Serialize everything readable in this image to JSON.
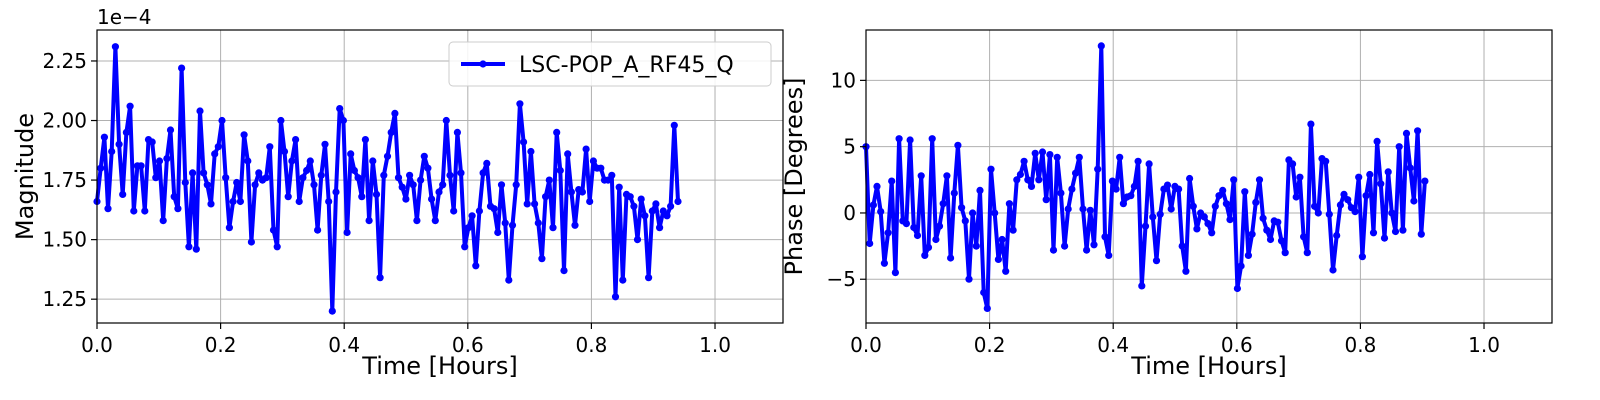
{
  "colors": {
    "series": "#0000ff",
    "grid": "#b0b0b0",
    "axes": "#000000"
  },
  "chart_data": [
    {
      "type": "line",
      "xlabel": "Time [Hours]",
      "ylabel": "Magnitude",
      "offset_label": "1e−4",
      "xlim": [
        0,
        1.11
      ],
      "ylim": [
        1.15,
        2.38
      ],
      "xticks": [
        0.0,
        0.2,
        0.4,
        0.6,
        0.8,
        1.0
      ],
      "xtick_labels": [
        "0.0",
        "0.2",
        "0.4",
        "0.6",
        "0.8",
        "1.0"
      ],
      "yticks": [
        1.25,
        1.5,
        1.75,
        2.0,
        2.25
      ],
      "ytick_labels": [
        "1.25",
        "1.50",
        "1.75",
        "2.00",
        "2.25"
      ],
      "grid": true,
      "legend": "top-right",
      "series": [
        {
          "name": "LSC-POP_A_RF45_Q",
          "x_start": 0.0,
          "x_step": 0.00595,
          "values": [
            1.66,
            1.8,
            1.93,
            1.63,
            1.87,
            2.31,
            1.9,
            1.69,
            1.95,
            2.06,
            1.62,
            1.81,
            1.81,
            1.62,
            1.92,
            1.91,
            1.76,
            1.83,
            1.58,
            1.84,
            1.96,
            1.68,
            1.63,
            2.22,
            1.74,
            1.47,
            1.78,
            1.46,
            2.04,
            1.78,
            1.73,
            1.65,
            1.86,
            1.89,
            2.0,
            1.76,
            1.55,
            1.66,
            1.74,
            1.66,
            1.94,
            1.83,
            1.49,
            1.73,
            1.78,
            1.75,
            1.76,
            1.89,
            1.54,
            1.47,
            2.0,
            1.87,
            1.68,
            1.83,
            1.92,
            1.66,
            1.76,
            1.79,
            1.83,
            1.73,
            1.54,
            1.77,
            1.9,
            1.66,
            1.2,
            1.7,
            2.05,
            2.0,
            1.53,
            1.86,
            1.79,
            1.76,
            1.68,
            1.92,
            1.58,
            1.83,
            1.69,
            1.34,
            1.77,
            1.85,
            1.95,
            2.03,
            1.76,
            1.72,
            1.67,
            1.77,
            1.73,
            1.58,
            1.75,
            1.85,
            1.8,
            1.67,
            1.58,
            1.7,
            1.73,
            2.0,
            1.77,
            1.62,
            1.95,
            1.78,
            1.47,
            1.55,
            1.6,
            1.39,
            1.62,
            1.78,
            1.82,
            1.64,
            1.63,
            1.53,
            1.73,
            1.57,
            1.33,
            1.56,
            1.73,
            2.07,
            1.91,
            1.65,
            1.87,
            1.65,
            1.57,
            1.42,
            1.68,
            1.75,
            1.55,
            1.95,
            1.79,
            1.37,
            1.86,
            1.7,
            1.56,
            1.71,
            1.7,
            1.88,
            1.66,
            1.83,
            1.8,
            1.8,
            1.75,
            1.75,
            1.77,
            1.26,
            1.72,
            1.33,
            1.69,
            1.68,
            1.64,
            1.5,
            1.67,
            1.6,
            1.34,
            1.62,
            1.65,
            1.55,
            1.62,
            1.6,
            1.64,
            1.98,
            1.66
          ]
        }
      ]
    },
    {
      "type": "line",
      "xlabel": "Time [Hours]",
      "ylabel": "Phase [Degrees]",
      "xlim": [
        0,
        1.11
      ],
      "ylim": [
        -8.3,
        13.8
      ],
      "xticks": [
        0.0,
        0.2,
        0.4,
        0.6,
        0.8,
        1.0
      ],
      "xtick_labels": [
        "0.0",
        "0.2",
        "0.4",
        "0.6",
        "0.8",
        "1.0"
      ],
      "yticks": [
        -5,
        0,
        5,
        10
      ],
      "ytick_labels": [
        "−5",
        "0",
        "5",
        "10"
      ],
      "grid": true,
      "series": [
        {
          "name": "",
          "x_start": 0.0,
          "x_step": 0.00595,
          "values": [
            5.0,
            -2.3,
            0.6,
            2.0,
            0.1,
            -3.8,
            -1.5,
            2.4,
            -4.5,
            5.6,
            -0.6,
            -0.8,
            5.5,
            -1.1,
            -1.7,
            2.8,
            -3.2,
            -2.6,
            5.6,
            -2.0,
            -1.0,
            0.7,
            2.8,
            -3.4,
            1.5,
            5.1,
            0.4,
            -0.6,
            -5.0,
            0.0,
            -2.5,
            1.7,
            -6.0,
            -7.2,
            3.3,
            0.0,
            -3.5,
            -2.0,
            -4.4,
            0.7,
            -1.3,
            2.5,
            2.9,
            3.9,
            2.5,
            2.0,
            4.5,
            2.5,
            4.6,
            1.0,
            4.4,
            -2.8,
            4.2,
            1.5,
            -2.5,
            0.3,
            1.8,
            3.0,
            4.2,
            0.3,
            -2.8,
            0.2,
            -2.4,
            3.3,
            12.6,
            -1.8,
            -3.2,
            2.4,
            1.8,
            4.2,
            0.7,
            1.2,
            1.3,
            2.0,
            3.9,
            -5.5,
            -1.0,
            3.7,
            -0.3,
            -3.6,
            -0.1,
            1.8,
            2.1,
            0.3,
            2.0,
            1.8,
            -2.5,
            -4.4,
            2.6,
            0.5,
            -1.2,
            0.0,
            -0.3,
            -0.8,
            -1.5,
            0.5,
            1.3,
            1.7,
            0.7,
            -0.5,
            2.5,
            -5.7,
            -4.0,
            1.6,
            -3.2,
            -1.6,
            0.8,
            2.5,
            -0.4,
            -1.3,
            -2.0,
            -0.6,
            -0.7,
            -2.1,
            -3.0,
            4.0,
            3.7,
            1.2,
            2.7,
            -1.8,
            -3.0,
            6.7,
            0.5,
            0.0,
            4.1,
            3.9,
            -0.1,
            -4.3,
            -1.7,
            0.6,
            1.4,
            1.0,
            0.4,
            0.1,
            2.7,
            -3.3,
            1.3,
            2.9,
            -1.5,
            5.4,
            2.2,
            -1.9,
            3.1,
            0.0,
            -1.4,
            5.0,
            -1.3,
            6.0,
            3.4,
            0.9,
            6.2,
            -1.6,
            2.4
          ]
        }
      ]
    }
  ]
}
